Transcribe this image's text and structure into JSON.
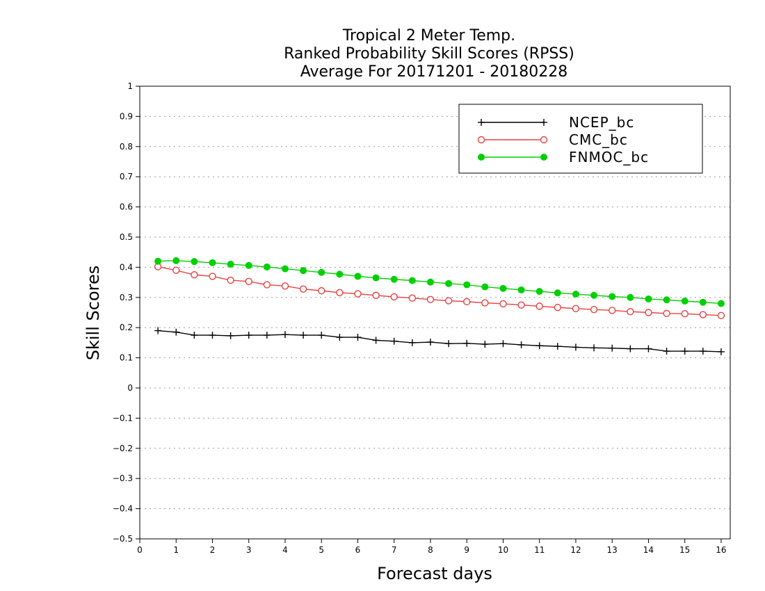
{
  "chart_data": {
    "type": "line",
    "title": [
      "Tropical 2 Meter Temp.",
      "Ranked Probability Skill Scores (RPSS)",
      "Average For 20171201 - 20180228"
    ],
    "xlabel": "Forecast days",
    "ylabel": "Skill Scores",
    "xlim": [
      0,
      16.25
    ],
    "ylim": [
      -0.5,
      1
    ],
    "x_ticks": [
      0,
      1,
      2,
      3,
      4,
      5,
      6,
      7,
      8,
      9,
      10,
      11,
      12,
      13,
      14,
      15,
      16
    ],
    "y_ticks": [
      1,
      0.9,
      0.8,
      0.7,
      0.6,
      0.5,
      0.4,
      0.3,
      0.2,
      0.1,
      0,
      -0.1,
      -0.2,
      -0.3,
      -0.4,
      -0.5
    ],
    "y_tick_labels": [
      "1",
      "0.9",
      "0.8",
      "0.7",
      "0.6",
      "0.5",
      "0.4",
      "0.3",
      "0.2",
      "0.1",
      "0",
      "−0.1",
      "−0.2",
      "−0.3",
      "−0.4",
      "−0.5"
    ],
    "grid": "horizontal dotted",
    "legend_position": "top-right",
    "x": [
      0.5,
      1.0,
      1.5,
      2.0,
      2.5,
      3.0,
      3.5,
      4.0,
      4.5,
      5.0,
      5.5,
      6.0,
      6.5,
      7.0,
      7.5,
      8.0,
      8.5,
      9.0,
      9.5,
      10.0,
      10.5,
      11.0,
      11.5,
      12.0,
      12.5,
      13.0,
      13.5,
      14.0,
      14.5,
      15.0,
      15.5,
      16.0
    ],
    "series": [
      {
        "name": "NCEP_bc",
        "color": "#000000",
        "marker": "plus",
        "values": [
          0.19,
          0.185,
          0.175,
          0.175,
          0.173,
          0.175,
          0.175,
          0.177,
          0.175,
          0.175,
          0.168,
          0.168,
          0.158,
          0.155,
          0.15,
          0.152,
          0.147,
          0.148,
          0.145,
          0.147,
          0.143,
          0.14,
          0.138,
          0.135,
          0.133,
          0.132,
          0.13,
          0.13,
          0.122,
          0.122,
          0.122,
          0.12
        ]
      },
      {
        "name": "CMC_bc",
        "color": "#e84040",
        "marker": "open-circle",
        "values": [
          0.402,
          0.39,
          0.375,
          0.37,
          0.357,
          0.353,
          0.342,
          0.338,
          0.328,
          0.322,
          0.316,
          0.312,
          0.307,
          0.302,
          0.298,
          0.293,
          0.289,
          0.286,
          0.282,
          0.279,
          0.275,
          0.271,
          0.267,
          0.263,
          0.26,
          0.257,
          0.253,
          0.25,
          0.247,
          0.246,
          0.243,
          0.24
        ]
      },
      {
        "name": "FNMOC_bc",
        "color": "#00d000",
        "marker": "filled-circle",
        "values": [
          0.42,
          0.422,
          0.419,
          0.415,
          0.41,
          0.406,
          0.401,
          0.395,
          0.389,
          0.383,
          0.377,
          0.37,
          0.365,
          0.36,
          0.356,
          0.351,
          0.346,
          0.342,
          0.335,
          0.33,
          0.325,
          0.32,
          0.315,
          0.311,
          0.307,
          0.303,
          0.3,
          0.295,
          0.292,
          0.288,
          0.284,
          0.28
        ]
      }
    ]
  }
}
